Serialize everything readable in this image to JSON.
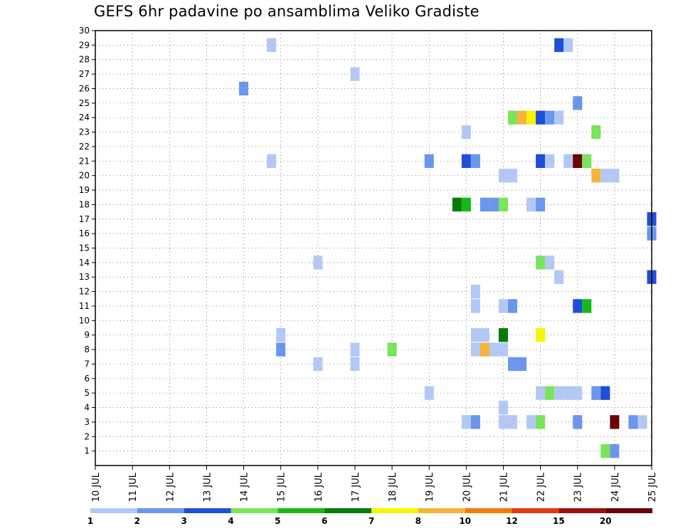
{
  "chart_data": {
    "type": "heatmap",
    "title": "GEFS 6hr padavine po ansamblima Veliko Gradiste",
    "x_tick_labels": [
      "10 JUL",
      "11 JUL",
      "12 JUL",
      "13 JUL",
      "14 JUL",
      "15 JUL",
      "16 JUL",
      "17 JUL",
      "18 JUL",
      "19 JUL",
      "20 JUL",
      "21 JUL",
      "22 JUL",
      "23 JUL",
      "24 JUL",
      "25 JUL"
    ],
    "x_range_days": [
      10,
      25
    ],
    "x_step": "6 hours",
    "y_tick_labels": [
      "1",
      "2",
      "3",
      "4",
      "5",
      "6",
      "7",
      "8",
      "9",
      "10",
      "11",
      "12",
      "13",
      "14",
      "15",
      "16",
      "17",
      "18",
      "19",
      "20",
      "21",
      "22",
      "23",
      "24",
      "25",
      "26",
      "27",
      "28",
      "29",
      "30"
    ],
    "y_range": [
      0,
      30
    ],
    "y_meaning": "ensemble member",
    "grid": true,
    "legend": {
      "placement": "bottom",
      "colors": [
        "#b4c8f6",
        "#6a96ee",
        "#1f4fd6",
        "#7ae45c",
        "#16b816",
        "#087a08",
        "#f6f600",
        "#f6b43c",
        "#f67a0c",
        "#e03a10",
        "#a00e0e",
        "#6a0404"
      ],
      "labels": [
        "1",
        "2",
        "3",
        "4",
        "5",
        "6",
        "7",
        "8",
        "10",
        "12",
        "15",
        "20"
      ]
    },
    "cells": [
      {
        "x": 14.75,
        "y": 29,
        "v": 1
      },
      {
        "x": 22.5,
        "y": 29,
        "v": 3
      },
      {
        "x": 22.75,
        "y": 29,
        "v": 1
      },
      {
        "x": 17,
        "y": 27,
        "v": 1
      },
      {
        "x": 14,
        "y": 26,
        "v": 2
      },
      {
        "x": 23,
        "y": 25,
        "v": 2
      },
      {
        "x": 21.25,
        "y": 24,
        "v": 4
      },
      {
        "x": 21.5,
        "y": 24,
        "v": 8
      },
      {
        "x": 21.75,
        "y": 24,
        "v": 7
      },
      {
        "x": 22,
        "y": 24,
        "v": 3
      },
      {
        "x": 22.25,
        "y": 24,
        "v": 2
      },
      {
        "x": 22.5,
        "y": 24,
        "v": 1
      },
      {
        "x": 20,
        "y": 23,
        "v": 1
      },
      {
        "x": 23.5,
        "y": 23,
        "v": 4
      },
      {
        "x": 14.75,
        "y": 21,
        "v": 1
      },
      {
        "x": 19,
        "y": 21,
        "v": 2
      },
      {
        "x": 20,
        "y": 21,
        "v": 3
      },
      {
        "x": 20.25,
        "y": 21,
        "v": 2
      },
      {
        "x": 22,
        "y": 21,
        "v": 3
      },
      {
        "x": 22.25,
        "y": 21,
        "v": 1
      },
      {
        "x": 22.75,
        "y": 21,
        "v": 1
      },
      {
        "x": 23,
        "y": 21,
        "v": 20
      },
      {
        "x": 23.25,
        "y": 21,
        "v": 4
      },
      {
        "x": 21,
        "y": 20,
        "v": 1
      },
      {
        "x": 21.25,
        "y": 20,
        "v": 1
      },
      {
        "x": 23.5,
        "y": 20,
        "v": 8
      },
      {
        "x": 23.75,
        "y": 20,
        "v": 1
      },
      {
        "x": 24,
        "y": 20,
        "v": 1
      },
      {
        "x": 19.75,
        "y": 18,
        "v": 6
      },
      {
        "x": 20,
        "y": 18,
        "v": 5
      },
      {
        "x": 20.5,
        "y": 18,
        "v": 2
      },
      {
        "x": 20.75,
        "y": 18,
        "v": 2
      },
      {
        "x": 21,
        "y": 18,
        "v": 4
      },
      {
        "x": 21.75,
        "y": 18,
        "v": 1
      },
      {
        "x": 22,
        "y": 18,
        "v": 2
      },
      {
        "x": 25,
        "y": 17,
        "v": 3
      },
      {
        "x": 25,
        "y": 16,
        "v": 2
      },
      {
        "x": 16,
        "y": 14,
        "v": 1
      },
      {
        "x": 22,
        "y": 14,
        "v": 4
      },
      {
        "x": 22.25,
        "y": 14,
        "v": 1
      },
      {
        "x": 22.5,
        "y": 13,
        "v": 1
      },
      {
        "x": 25,
        "y": 13,
        "v": 3
      },
      {
        "x": 20.25,
        "y": 12,
        "v": 1
      },
      {
        "x": 20.25,
        "y": 11,
        "v": 1
      },
      {
        "x": 21,
        "y": 11,
        "v": 1
      },
      {
        "x": 21.25,
        "y": 11,
        "v": 2
      },
      {
        "x": 23,
        "y": 11,
        "v": 3
      },
      {
        "x": 23.25,
        "y": 11,
        "v": 5
      },
      {
        "x": 15,
        "y": 9,
        "v": 1
      },
      {
        "x": 20.25,
        "y": 9,
        "v": 1
      },
      {
        "x": 20.5,
        "y": 9,
        "v": 1
      },
      {
        "x": 21,
        "y": 9,
        "v": 6
      },
      {
        "x": 22,
        "y": 9,
        "v": 7
      },
      {
        "x": 15,
        "y": 8,
        "v": 2
      },
      {
        "x": 17,
        "y": 8,
        "v": 1
      },
      {
        "x": 18,
        "y": 8,
        "v": 4
      },
      {
        "x": 20.25,
        "y": 8,
        "v": 1
      },
      {
        "x": 20.5,
        "y": 8,
        "v": 8
      },
      {
        "x": 20.75,
        "y": 8,
        "v": 1
      },
      {
        "x": 21,
        "y": 8,
        "v": 1
      },
      {
        "x": 16,
        "y": 7,
        "v": 1
      },
      {
        "x": 17,
        "y": 7,
        "v": 1
      },
      {
        "x": 21.25,
        "y": 7,
        "v": 2
      },
      {
        "x": 21.5,
        "y": 7,
        "v": 2
      },
      {
        "x": 19,
        "y": 5,
        "v": 1
      },
      {
        "x": 22,
        "y": 5,
        "v": 1
      },
      {
        "x": 22.25,
        "y": 5,
        "v": 4
      },
      {
        "x": 22.5,
        "y": 5,
        "v": 1
      },
      {
        "x": 22.75,
        "y": 5,
        "v": 1
      },
      {
        "x": 23,
        "y": 5,
        "v": 1
      },
      {
        "x": 23.5,
        "y": 5,
        "v": 2
      },
      {
        "x": 23.75,
        "y": 5,
        "v": 3
      },
      {
        "x": 21,
        "y": 4,
        "v": 1
      },
      {
        "x": 20,
        "y": 3,
        "v": 1
      },
      {
        "x": 20.25,
        "y": 3,
        "v": 2
      },
      {
        "x": 21,
        "y": 3,
        "v": 1
      },
      {
        "x": 21.25,
        "y": 3,
        "v": 1
      },
      {
        "x": 21.75,
        "y": 3,
        "v": 1
      },
      {
        "x": 22,
        "y": 3,
        "v": 4
      },
      {
        "x": 23,
        "y": 3,
        "v": 2
      },
      {
        "x": 24,
        "y": 3,
        "v": 20
      },
      {
        "x": 24.5,
        "y": 3,
        "v": 2
      },
      {
        "x": 24.75,
        "y": 3,
        "v": 1
      },
      {
        "x": 23.75,
        "y": 1,
        "v": 4
      },
      {
        "x": 24,
        "y": 1,
        "v": 2
      }
    ]
  }
}
